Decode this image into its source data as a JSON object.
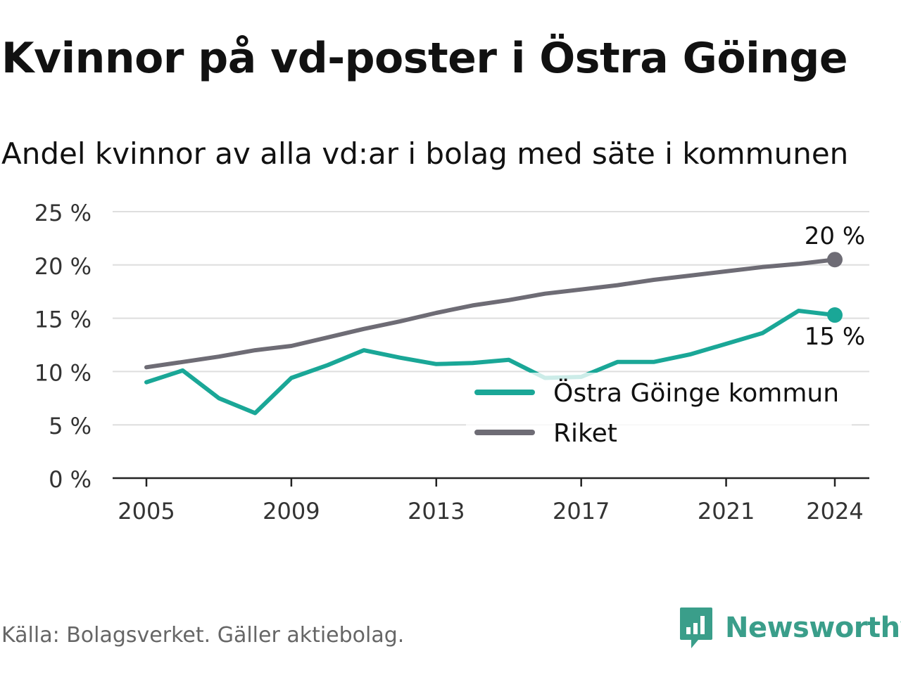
{
  "title": "Kvinnor på vd-poster i Östra Göinge",
  "subtitle": "Andel kvinnor av alla vd:ar i bolag med säte i kommunen",
  "source": "Källa: Bolagsverket. Gäller aktiebolag.",
  "brand": {
    "name": "Newsworthy",
    "icon": "newsworthy-logo-icon",
    "color": "#3a9e8a"
  },
  "chart_data": {
    "type": "line",
    "x": [
      2005,
      2006,
      2007,
      2008,
      2009,
      2010,
      2011,
      2012,
      2013,
      2014,
      2015,
      2016,
      2017,
      2018,
      2019,
      2020,
      2021,
      2022,
      2023,
      2024
    ],
    "series": [
      {
        "name": "Östra Göinge kommun",
        "color": "#1aa797",
        "values": [
          9.0,
          10.1,
          7.5,
          6.1,
          9.4,
          10.6,
          12.0,
          11.3,
          10.7,
          10.8,
          11.1,
          9.4,
          9.5,
          10.9,
          10.9,
          11.6,
          12.6,
          13.6,
          15.7,
          15.3
        ],
        "end_label": "15 %"
      },
      {
        "name": "Riket",
        "color": "#6e6c75",
        "values": [
          10.4,
          10.9,
          11.4,
          12.0,
          12.4,
          13.2,
          14.0,
          14.7,
          15.5,
          16.2,
          16.7,
          17.3,
          17.7,
          18.1,
          18.6,
          19.0,
          19.4,
          19.8,
          20.1,
          20.5
        ],
        "end_label": "20 %"
      }
    ],
    "y_ticks": [
      {
        "value": 0,
        "label": "0 %"
      },
      {
        "value": 5,
        "label": "5 %"
      },
      {
        "value": 10,
        "label": "10 %"
      },
      {
        "value": 15,
        "label": "15 %"
      },
      {
        "value": 20,
        "label": "20 %"
      },
      {
        "value": 25,
        "label": "25 %"
      }
    ],
    "x_ticks": [
      {
        "value": 2005,
        "label": "2005"
      },
      {
        "value": 2009,
        "label": "2009"
      },
      {
        "value": 2013,
        "label": "2013"
      },
      {
        "value": 2017,
        "label": "2017"
      },
      {
        "value": 2021,
        "label": "2021"
      },
      {
        "value": 2024,
        "label": "2024"
      }
    ],
    "ylim": [
      0,
      25
    ],
    "xlim": [
      2005,
      2024
    ],
    "grid": true,
    "legend_position": "bottom-right"
  }
}
